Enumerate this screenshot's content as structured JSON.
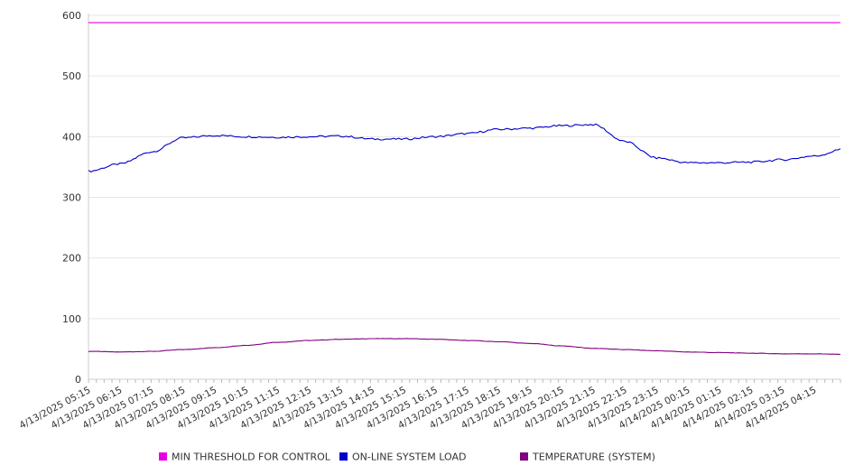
{
  "chart_data": {
    "type": "line",
    "title": "",
    "xlabel": "",
    "ylabel": "",
    "ylim": [
      0,
      600
    ],
    "yticks": [
      "0",
      "100",
      "200",
      "300",
      "400",
      "500",
      "600"
    ],
    "xticks": [
      "4/13/2025 05:15",
      "4/13/2025 06:15",
      "4/13/2025 07:15",
      "4/13/2025 08:15",
      "4/13/2025 09:15",
      "4/13/2025 10:15",
      "4/13/2025 11:15",
      "4/13/2025 12:15",
      "4/13/2025 13:15",
      "4/13/2025 14:15",
      "4/13/2025 15:15",
      "4/13/2025 16:15",
      "4/13/2025 17:15",
      "4/13/2025 18:15",
      "4/13/2025 19:15",
      "4/13/2025 20:15",
      "4/13/2025 21:15",
      "4/13/2025 22:15",
      "4/13/2025 23:15",
      "4/14/2025 00:15",
      "4/14/2025 01:15",
      "4/14/2025 02:15",
      "4/14/2025 03:15",
      "4/14/2025 04:15"
    ],
    "x": [
      "4/13/2025 05:15",
      "4/13/2025 06:15",
      "4/13/2025 07:15",
      "4/13/2025 08:15",
      "4/13/2025 09:15",
      "4/13/2025 10:15",
      "4/13/2025 11:15",
      "4/13/2025 12:15",
      "4/13/2025 13:15",
      "4/13/2025 14:15",
      "4/13/2025 15:15",
      "4/13/2025 16:15",
      "4/13/2025 17:15",
      "4/13/2025 18:15",
      "4/13/2025 19:15",
      "4/13/2025 20:15",
      "4/13/2025 21:15",
      "4/13/2025 22:15",
      "4/13/2025 23:15",
      "4/14/2025 00:15",
      "4/14/2025 01:15",
      "4/14/2025 02:15",
      "4/14/2025 03:15",
      "4/14/2025 04:15",
      "4/14/2025 05:05"
    ],
    "series": [
      {
        "name": "MIN THRESHOLD FOR CONTROL",
        "color": "#e600e6",
        "values": [
          588,
          588,
          588,
          588,
          588,
          588,
          588,
          588,
          588,
          588,
          588,
          588,
          588,
          588,
          588,
          588,
          588,
          588,
          588,
          588,
          588,
          588,
          588,
          588,
          588
        ]
      },
      {
        "name": "ON-LINE SYSTEM LOAD",
        "color": "#0000cc",
        "values": [
          343,
          355,
          375,
          398,
          402,
          400,
          399,
          400,
          401,
          396,
          396,
          400,
          405,
          412,
          414,
          418,
          420,
          392,
          365,
          357,
          357,
          358,
          362,
          368,
          380
        ]
      },
      {
        "name": "TEMPERATURE (SYSTEM)",
        "color": "#800080",
        "values": [
          46,
          45,
          46,
          49,
          52,
          56,
          61,
          64,
          66,
          67,
          67,
          66,
          64,
          62,
          59,
          55,
          51,
          49,
          47,
          45,
          44,
          43,
          42,
          42,
          41
        ]
      }
    ],
    "legend_position": "bottom",
    "grid": true
  }
}
